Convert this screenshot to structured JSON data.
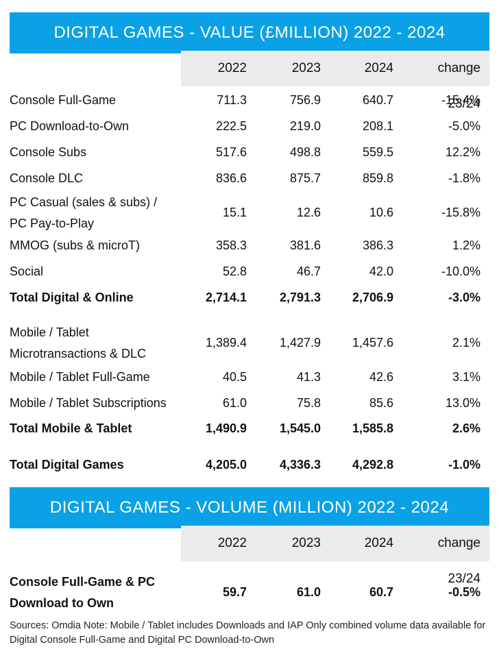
{
  "value_table": {
    "title": "DIGITAL GAMES - VALUE (£MILLION) 2022 - 2024",
    "headers": [
      "2022",
      "2023",
      "2024",
      "change 23/24"
    ],
    "rows": [
      {
        "label": "Console Full-Game",
        "v2022": "711.3",
        "v2023": "756.9",
        "v2024": "640.7",
        "change": "-15.4%"
      },
      {
        "label": "PC Download-to-Own",
        "v2022": "222.5",
        "v2023": "219.0",
        "v2024": "208.1",
        "change": "-5.0%"
      },
      {
        "label": "Console Subs",
        "v2022": "517.6",
        "v2023": "498.8",
        "v2024": "559.5",
        "change": "12.2%"
      },
      {
        "label": "Console DLC",
        "v2022": "836.6",
        "v2023": "875.7",
        "v2024": "859.8",
        "change": "-1.8%"
      },
      {
        "label": "PC Casual (sales & subs) / PC Pay-to-Play",
        "v2022": "15.1",
        "v2023": "12.6",
        "v2024": "10.6",
        "change": "-15.8%"
      },
      {
        "label": "MMOG (subs & microT)",
        "v2022": "358.3",
        "v2023": "381.6",
        "v2024": "386.3",
        "change": "1.2%"
      },
      {
        "label": "Social",
        "v2022": "52.8",
        "v2023": "46.7",
        "v2024": "42.0",
        "change": "-10.0%"
      },
      {
        "label": "Total Digital & Online",
        "v2022": "2,714.1",
        "v2023": "2,791.3",
        "v2024": "2,706.9",
        "change": "-3.0%"
      },
      {
        "label": "Mobile / Tablet Microtransactions & DLC",
        "v2022": "1,389.4",
        "v2023": "1,427.9",
        "v2024": "1,457.6",
        "change": "2.1%"
      },
      {
        "label": "Mobile / Tablet Full-Game",
        "v2022": "40.5",
        "v2023": "41.3",
        "v2024": "42.6",
        "change": "3.1%"
      },
      {
        "label": "Mobile / Tablet Subscriptions",
        "v2022": "61.0",
        "v2023": "75.8",
        "v2024": "85.6",
        "change": "13.0%"
      },
      {
        "label": "Total Mobile & Tablet",
        "v2022": "1,490.9",
        "v2023": "1,545.0",
        "v2024": "1,585.8",
        "change": "2.6%"
      },
      {
        "label": "Total Digital Games",
        "v2022": "4,205.0",
        "v2023": "4,336.3",
        "v2024": "4,292.8",
        "change": "-1.0%"
      }
    ]
  },
  "volume_table": {
    "title": "DIGITAL GAMES - VOLUME (MILLION) 2022 - 2024",
    "headers": [
      "2022",
      "2023",
      "2024",
      "change 23/24"
    ],
    "rows": [
      {
        "label": "Console Full-Game & PC Download to Own",
        "v2022": "59.7",
        "v2023": "61.0",
        "v2024": "60.7",
        "change": "-0.5%"
      }
    ]
  },
  "footnote": "Sources: Omdia Note: Mobile / Tablet includes Downloads and IAP    Only combined volume data available for Digital Console Full-Game and Digital PC Download-to-Own"
}
